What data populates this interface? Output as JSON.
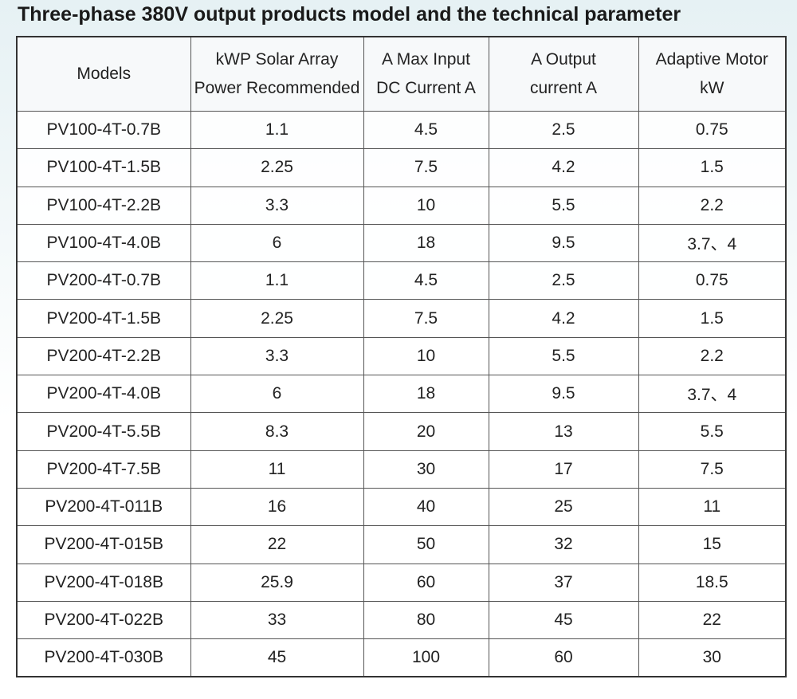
{
  "header": {
    "title": "Three-phase 380V output products model and the technical parameter"
  },
  "table": {
    "columns": [
      [
        "Models"
      ],
      [
        "kWP Solar Array",
        "Power Recommended"
      ],
      [
        "A Max Input",
        "DC Current A"
      ],
      [
        "A Output",
        "current A"
      ],
      [
        "Adaptive Motor",
        "kW"
      ]
    ],
    "rows": [
      [
        "PV100-4T-0.7B",
        1.1,
        4.5,
        2.5,
        0.75
      ],
      [
        "PV100-4T-1.5B",
        2.25,
        7.5,
        4.2,
        1.5
      ],
      [
        "PV100-4T-2.2B",
        3.3,
        10,
        5.5,
        2.2
      ],
      [
        "PV100-4T-4.0B",
        6,
        18,
        9.5,
        "3.7、4"
      ],
      [
        "PV200-4T-0.7B",
        1.1,
        4.5,
        2.5,
        0.75
      ],
      [
        "PV200-4T-1.5B",
        2.25,
        7.5,
        4.2,
        1.5
      ],
      [
        "PV200-4T-2.2B",
        3.3,
        10,
        5.5,
        2.2
      ],
      [
        "PV200-4T-4.0B",
        6,
        18,
        9.5,
        "3.7、4"
      ],
      [
        "PV200-4T-5.5B",
        8.3,
        20,
        13,
        5.5
      ],
      [
        "PV200-4T-7.5B",
        11,
        30,
        17,
        7.5
      ],
      [
        "PV200-4T-011B",
        16,
        40,
        25,
        11
      ],
      [
        "PV200-4T-015B",
        22,
        50,
        32,
        15
      ],
      [
        "PV200-4T-018B",
        25.9,
        60,
        37,
        18.5
      ],
      [
        "PV200-4T-022B",
        33,
        80,
        45,
        22
      ],
      [
        "PV200-4T-030B",
        45,
        100,
        60,
        30
      ]
    ]
  }
}
